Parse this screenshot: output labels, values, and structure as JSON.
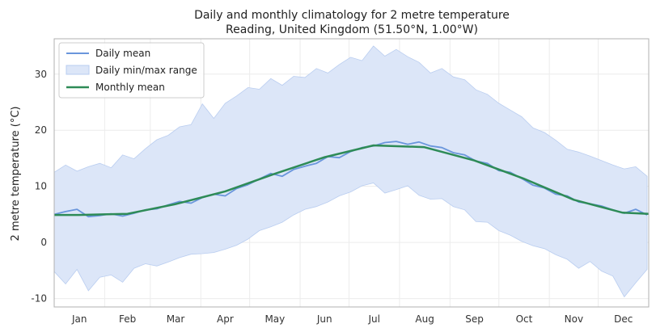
{
  "chart_data": {
    "type": "line",
    "title": "Daily and monthly climatology for 2 metre temperature",
    "subtitle": "Reading, United Kingdom (51.50°N, 1.00°W)",
    "xlabel": "",
    "ylabel": "2 metre temperature (°C)",
    "ylim": [
      -11.5,
      36.3
    ],
    "xlim": [
      1,
      366
    ],
    "yticks": [
      -10,
      0,
      10,
      20,
      30
    ],
    "month_labels": [
      "Jan",
      "Feb",
      "Mar",
      "Apr",
      "May",
      "Jun",
      "Jul",
      "Aug",
      "Sep",
      "Oct",
      "Nov",
      "Dec"
    ],
    "grid": true,
    "legend_position": "top-left",
    "colors": {
      "daily_mean": "#6a96dc",
      "range_fill": "#dce6f8",
      "range_edge": "#b9cdf0",
      "monthly_mean": "#2e8b57"
    },
    "legend": [
      "Daily mean",
      "Daily min/max range",
      "Monthly mean"
    ],
    "monthly_mean": {
      "name": "Monthly mean",
      "days": [
        16,
        46,
        75,
        106,
        136,
        167,
        197,
        228,
        259,
        289,
        320,
        350,
        366
      ],
      "values": [
        4.9,
        5.1,
        6.8,
        9.1,
        12.2,
        15.2,
        17.3,
        17.0,
        14.6,
        11.4,
        7.6,
        5.3,
        5.1
      ]
    },
    "daily_mean": {
      "name": "Daily mean",
      "days": [
        1,
        8,
        15,
        22,
        29,
        36,
        43,
        50,
        57,
        64,
        71,
        78,
        85,
        92,
        99,
        106,
        113,
        120,
        127,
        134,
        141,
        148,
        155,
        162,
        169,
        176,
        183,
        190,
        197,
        204,
        211,
        218,
        225,
        232,
        239,
        246,
        253,
        260,
        267,
        274,
        281,
        288,
        295,
        302,
        309,
        316,
        323,
        330,
        337,
        344,
        351,
        358,
        365
      ],
      "values": [
        5.0,
        5.5,
        5.9,
        4.6,
        4.8,
        5.1,
        4.7,
        5.2,
        5.8,
        6.0,
        6.7,
        7.3,
        7.0,
        8.0,
        8.6,
        8.3,
        9.6,
        10.3,
        11.3,
        12.3,
        11.8,
        13.0,
        13.6,
        14.1,
        15.3,
        15.1,
        16.2,
        16.9,
        17.2,
        17.8,
        18.0,
        17.5,
        17.9,
        17.2,
        16.9,
        16.0,
        15.6,
        14.5,
        14.1,
        12.8,
        12.5,
        11.4,
        10.2,
        9.7,
        8.6,
        8.3,
        7.2,
        6.9,
        6.5,
        5.8,
        5.2,
        5.9,
        4.9
      ]
    },
    "daily_max": {
      "name": "Daily max",
      "days": [
        1,
        8,
        15,
        22,
        29,
        36,
        43,
        50,
        57,
        64,
        71,
        78,
        85,
        92,
        99,
        106,
        113,
        120,
        127,
        134,
        141,
        148,
        155,
        162,
        169,
        176,
        183,
        190,
        197,
        204,
        211,
        218,
        225,
        232,
        239,
        246,
        253,
        260,
        267,
        274,
        281,
        288,
        295,
        302,
        309,
        316,
        323,
        330,
        337,
        344,
        351,
        358,
        365
      ],
      "values": [
        12.5,
        13.8,
        12.7,
        13.5,
        14.1,
        13.3,
        15.6,
        14.9,
        16.7,
        18.3,
        19.1,
        20.6,
        21.0,
        24.7,
        22.1,
        24.8,
        26.1,
        27.6,
        27.3,
        29.2,
        28.0,
        29.6,
        29.4,
        31.0,
        30.2,
        31.7,
        33.0,
        32.4,
        35.0,
        33.2,
        34.4,
        33.1,
        32.1,
        30.2,
        31.0,
        29.5,
        29.0,
        27.2,
        26.4,
        24.8,
        23.6,
        22.4,
        20.4,
        19.6,
        18.2,
        16.6,
        16.1,
        15.4,
        14.6,
        13.8,
        13.1,
        13.5,
        11.8
      ]
    },
    "daily_min": {
      "name": "Daily min",
      "days": [
        1,
        8,
        15,
        22,
        29,
        36,
        43,
        50,
        57,
        64,
        71,
        78,
        85,
        92,
        99,
        106,
        113,
        120,
        127,
        134,
        141,
        148,
        155,
        162,
        169,
        176,
        183,
        190,
        197,
        204,
        211,
        218,
        225,
        232,
        239,
        246,
        253,
        260,
        267,
        274,
        281,
        288,
        295,
        302,
        309,
        316,
        323,
        330,
        337,
        344,
        351,
        358,
        365
      ],
      "values": [
        -5.2,
        -7.4,
        -4.8,
        -8.6,
        -6.2,
        -5.8,
        -7.1,
        -4.6,
        -3.8,
        -4.2,
        -3.5,
        -2.7,
        -2.1,
        -2.0,
        -1.8,
        -1.2,
        -0.5,
        0.6,
        2.1,
        2.8,
        3.6,
        4.9,
        5.9,
        6.4,
        7.2,
        8.3,
        9.0,
        10.1,
        10.6,
        8.8,
        9.4,
        10.1,
        8.4,
        7.7,
        7.8,
        6.4,
        5.8,
        3.7,
        3.6,
        2.1,
        1.3,
        0.2,
        -0.6,
        -1.1,
        -2.2,
        -3.0,
        -4.6,
        -3.4,
        -5.1,
        -6.0,
        -9.7,
        -7.2,
        -4.8
      ]
    }
  }
}
